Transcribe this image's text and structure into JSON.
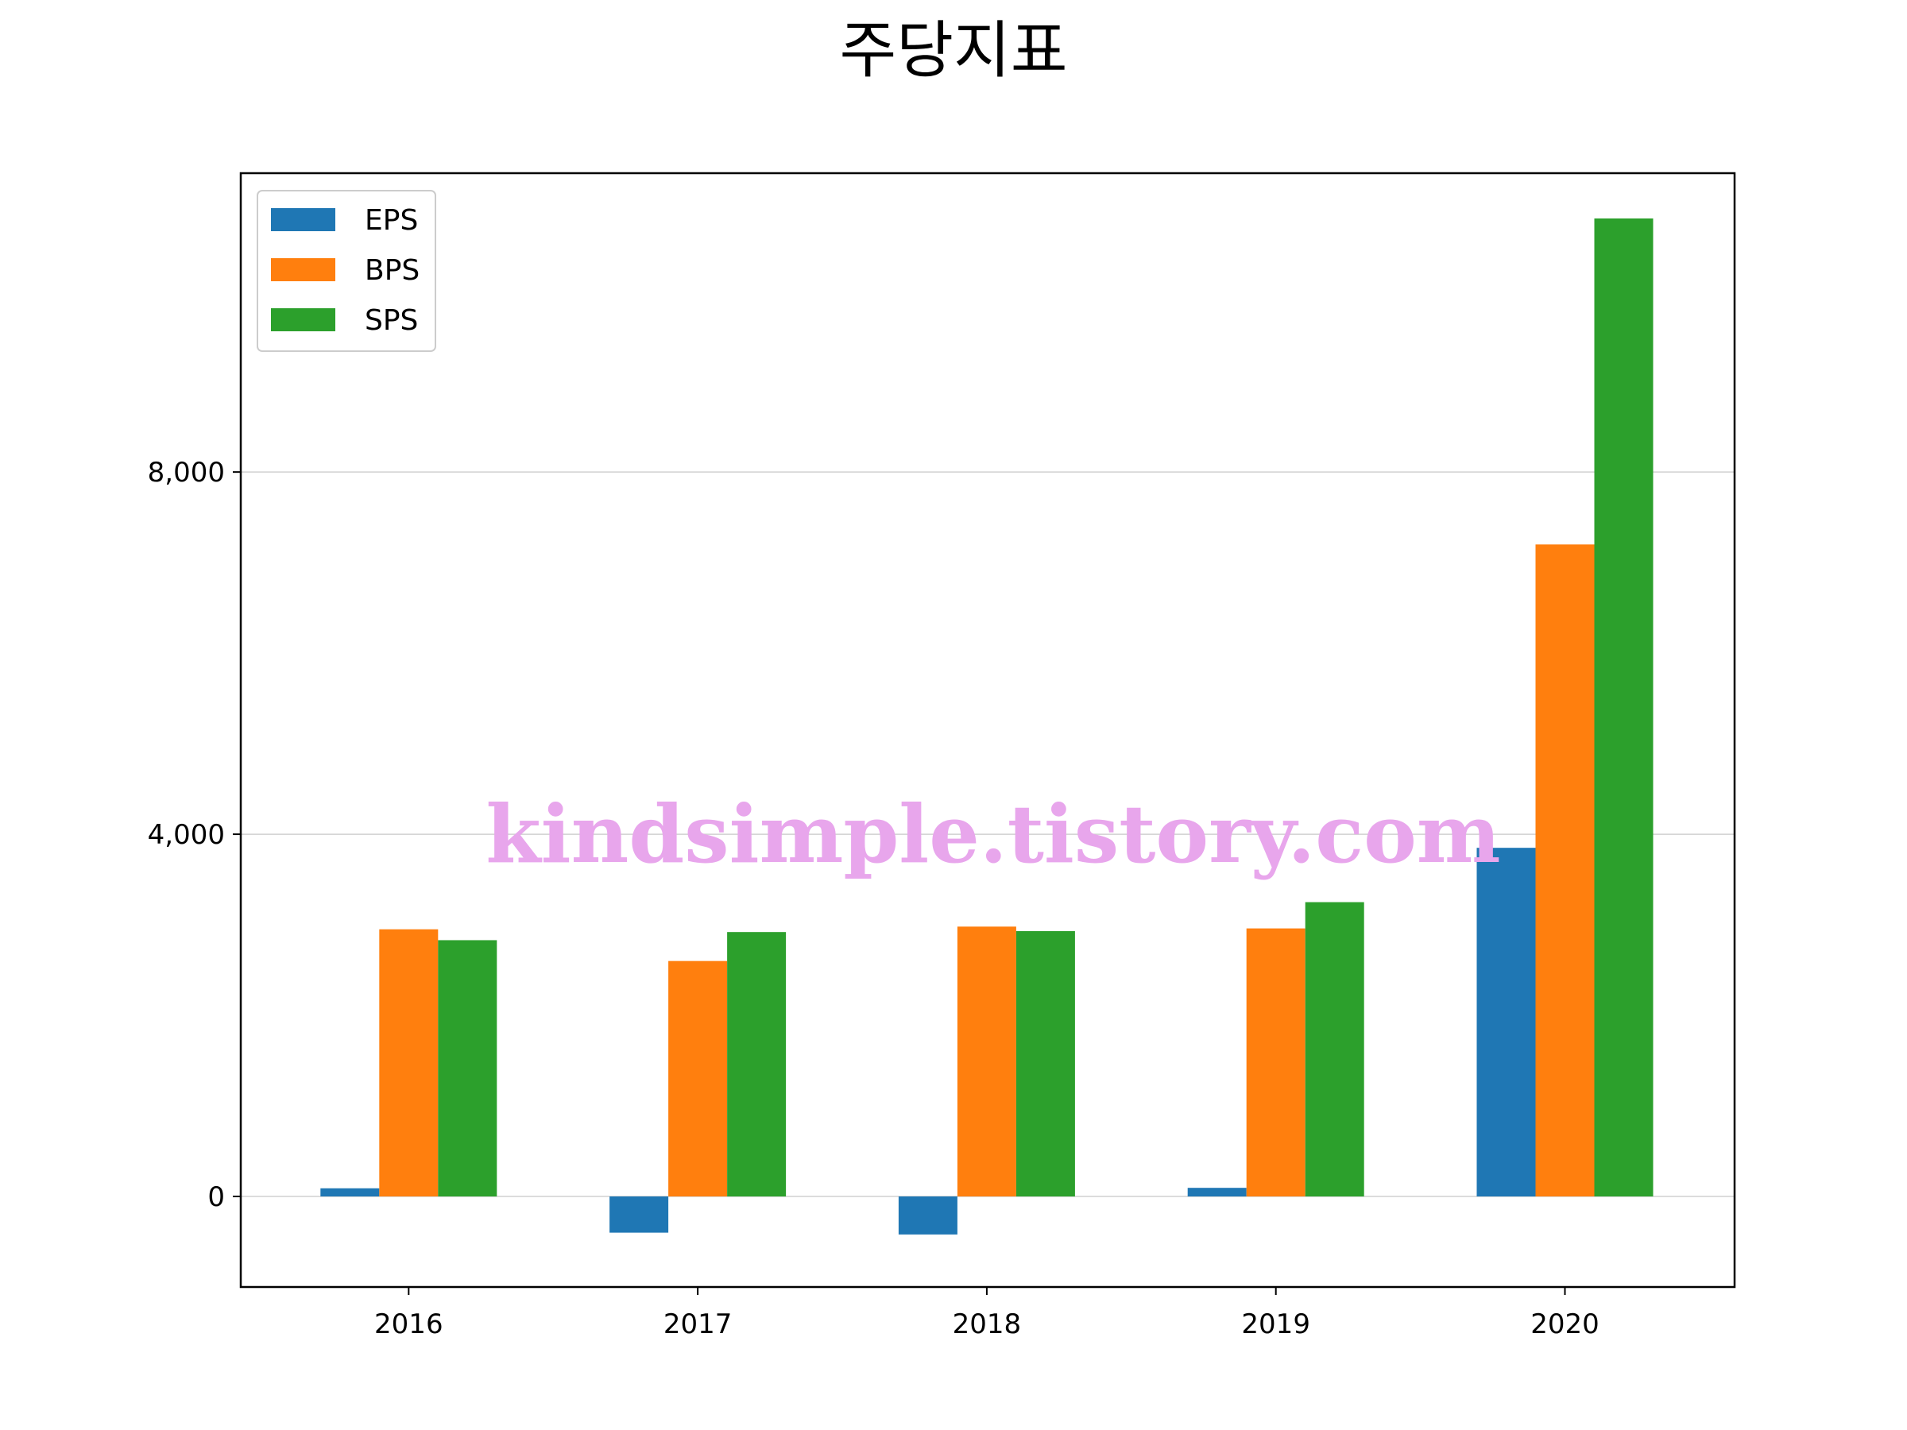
{
  "chart_data": {
    "type": "bar",
    "title": "주당지표",
    "xlabel": "",
    "ylabel": "",
    "categories": [
      "2016",
      "2017",
      "2018",
      "2019",
      "2020"
    ],
    "series": [
      {
        "name": "EPS",
        "color": "#1f77b4",
        "values": [
          90,
          -400,
          -420,
          95,
          3850
        ]
      },
      {
        "name": "BPS",
        "color": "#ff7f0e",
        "values": [
          2950,
          2600,
          2980,
          2960,
          7200
        ]
      },
      {
        "name": "SPS",
        "color": "#2ca02c",
        "values": [
          2830,
          2920,
          2930,
          3250,
          10800
        ]
      }
    ],
    "ylim": [
      -1000,
      11300
    ],
    "yticks": [
      0,
      4000,
      8000
    ],
    "ytick_labels": [
      "0",
      "4,000",
      "8,000"
    ],
    "grid": "horizontal",
    "legend_position": "top-left",
    "watermark": "kindsimple.tistory.com"
  }
}
